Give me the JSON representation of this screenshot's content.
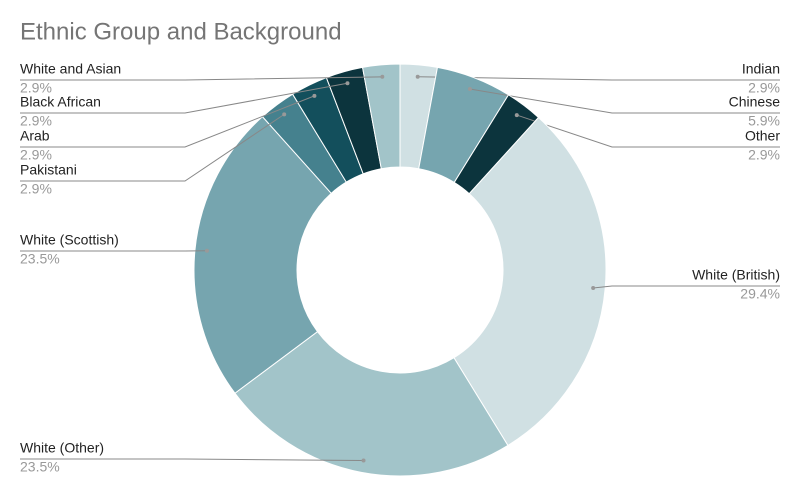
{
  "chart_data": {
    "type": "donut",
    "title": "Ethnic Group and Background",
    "categories": [
      "Indian",
      "Chinese",
      "Other",
      "White (British)",
      "White (Other)",
      "White (Scottish)",
      "Pakistani",
      "Arab",
      "Black African",
      "White and Asian"
    ],
    "values": [
      2.9,
      5.9,
      2.9,
      29.4,
      23.5,
      23.5,
      2.9,
      2.9,
      2.9,
      2.9
    ],
    "value_labels": [
      "2.9%",
      "5.9%",
      "2.9%",
      "29.4%",
      "23.5%",
      "23.5%",
      "2.9%",
      "2.9%",
      "2.9%",
      "2.9%"
    ],
    "colors": [
      "#d0e0e3",
      "#76a5af",
      "#0c343d",
      "#d0e0e3",
      "#a2c4c9",
      "#76a5af",
      "#45818e",
      "#134f5c",
      "#0c343d",
      "#a2c4c9"
    ]
  }
}
